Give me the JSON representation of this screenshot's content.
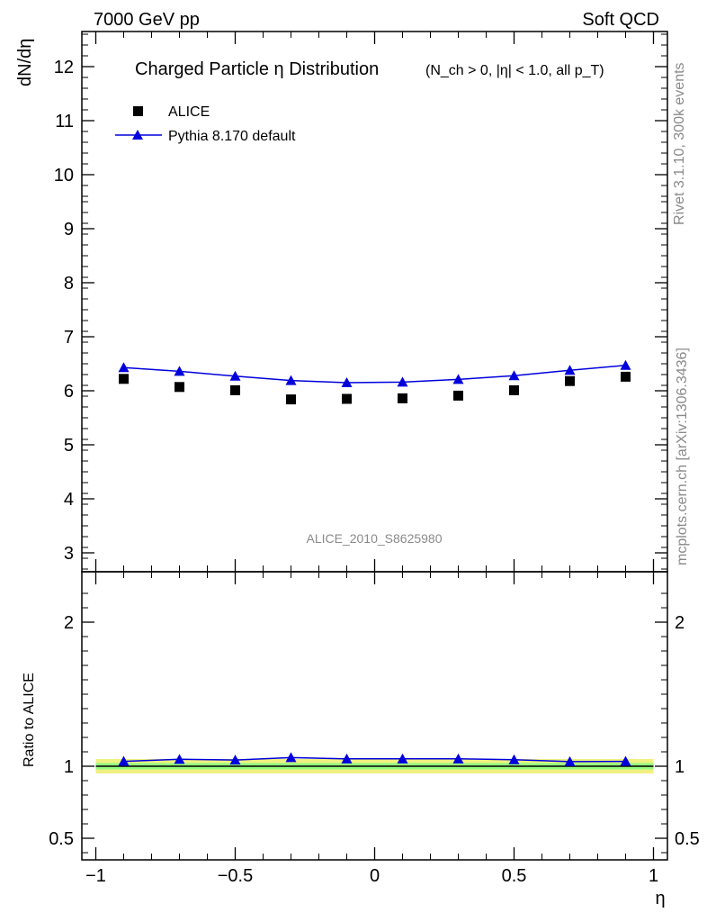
{
  "header": {
    "left": "7000 GeV pp",
    "right": "Soft QCD"
  },
  "side_labels": {
    "rivet": "Rivet 3.1.10,  300k events",
    "mcplots": "mcplots.cern.ch [arXiv:1306.3436]"
  },
  "colors": {
    "data": "#000000",
    "mc": "#0000dd",
    "band_outer": "#f0f080",
    "band_inner": "#80ff80",
    "label_gray": "#8a8a8a"
  },
  "chart_data": [
    {
      "type": "scatter",
      "title_main": "Charged Particle η Distribution",
      "title_sub": "(N_ch > 0, |η| < 1.0, all p_T)",
      "ylabel": "dN/dη",
      "xlabel": "",
      "xlim": [
        -1.05,
        1.05
      ],
      "ylim": [
        2.65,
        12.65
      ],
      "yticks": [
        3,
        4,
        5,
        6,
        7,
        8,
        9,
        10,
        11,
        12
      ],
      "analysis_label": "ALICE_2010_S8625980",
      "legend_position": "top-left",
      "series": [
        {
          "name": "ALICE",
          "marker": "square",
          "x": [
            -0.9,
            -0.7,
            -0.5,
            -0.3,
            -0.1,
            0.1,
            0.3,
            0.5,
            0.7,
            0.9
          ],
          "y": [
            6.22,
            6.07,
            6.01,
            5.84,
            5.85,
            5.86,
            5.91,
            6.01,
            6.18,
            6.26
          ]
        },
        {
          "name": "Pythia 8.170 default",
          "marker": "triangle",
          "x": [
            -0.9,
            -0.7,
            -0.5,
            -0.3,
            -0.1,
            0.1,
            0.3,
            0.5,
            0.7,
            0.9
          ],
          "y": [
            6.43,
            6.36,
            6.27,
            6.19,
            6.15,
            6.16,
            6.21,
            6.28,
            6.38,
            6.47
          ]
        }
      ]
    },
    {
      "type": "line",
      "ylabel": "Ratio to ALICE",
      "xlabel": "η",
      "xlim": [
        -1.05,
        1.05
      ],
      "ylim": [
        0.35,
        2.35
      ],
      "xticks": [
        -1,
        -0.5,
        0,
        0.5,
        1
      ],
      "xtick_labels": [
        "−1",
        "−0.5",
        "0",
        "0.5",
        "1"
      ],
      "yticks": [
        0.5,
        1,
        2
      ],
      "ytick_labels": [
        "0.5",
        "1",
        "2"
      ],
      "reference": 1.0,
      "band_half_width": 0.05,
      "series": [
        {
          "name": "Pythia 8.170 default",
          "x": [
            -0.9,
            -0.7,
            -0.5,
            -0.3,
            -0.1,
            0.1,
            0.3,
            0.5,
            0.7,
            0.9
          ],
          "y": [
            1.034,
            1.048,
            1.043,
            1.06,
            1.051,
            1.051,
            1.051,
            1.045,
            1.032,
            1.034
          ]
        }
      ]
    }
  ]
}
